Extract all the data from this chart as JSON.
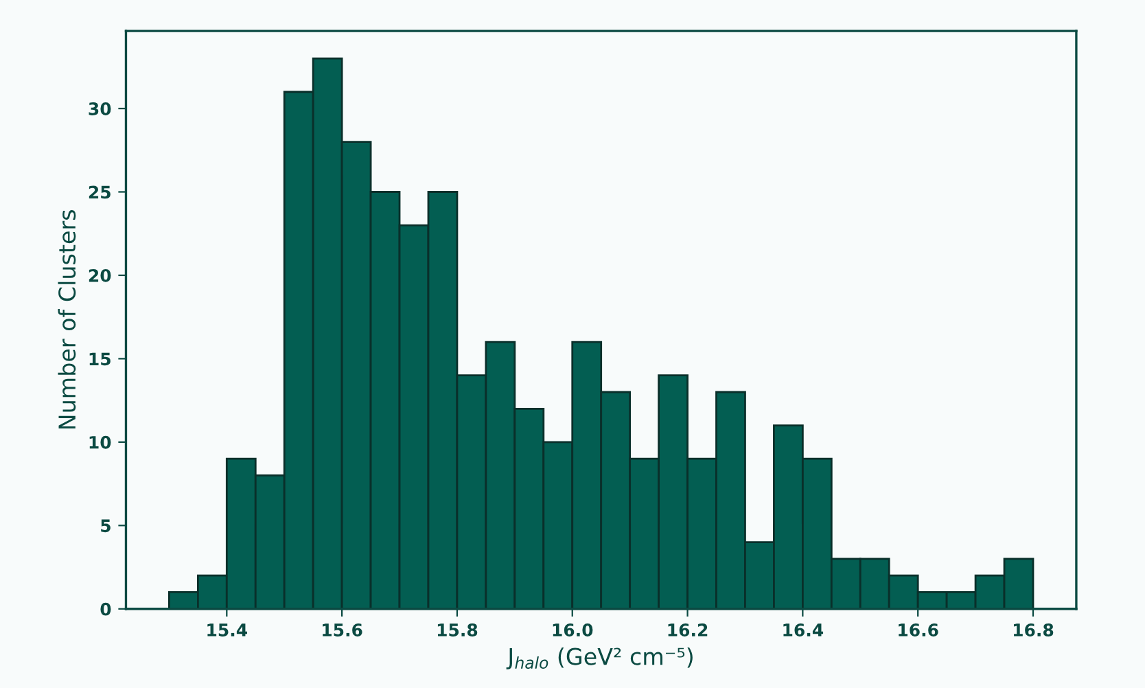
{
  "chart_data": {
    "type": "histogram",
    "xlabel": "J$_{halo}$ (GeV² cm⁻⁵)",
    "ylabel": "Number of Clusters",
    "bins": [
      15.3,
      15.35,
      15.4,
      15.45,
      15.5,
      15.55,
      15.6,
      15.65,
      15.7,
      15.75,
      15.8,
      15.85,
      15.9,
      15.95,
      16.0,
      16.05,
      16.1,
      16.15,
      16.2,
      16.25,
      16.3,
      16.35,
      16.4,
      16.45,
      16.5,
      16.55,
      16.6,
      16.65,
      16.7,
      16.75,
      16.8
    ],
    "values": [
      1,
      2,
      9,
      8,
      31,
      33,
      28,
      25,
      23,
      25,
      14,
      16,
      12,
      10,
      16,
      13,
      9,
      14,
      9,
      13,
      4,
      11,
      9,
      3,
      3,
      2,
      1,
      1,
      2,
      3
    ],
    "color": "#035e52",
    "xlim": [
      15.225,
      16.875
    ],
    "ylim": [
      0,
      34.65
    ],
    "xticks": [
      {
        "value": 15.4,
        "label": "15.4"
      },
      {
        "value": 15.6,
        "label": "15.6"
      },
      {
        "value": 15.8,
        "label": "15.8"
      },
      {
        "value": 16.0,
        "label": "16.0"
      },
      {
        "value": 16.2,
        "label": "16.2"
      },
      {
        "value": 16.4,
        "label": "16.4"
      },
      {
        "value": 16.6,
        "label": "16.6"
      },
      {
        "value": 16.8,
        "label": "16.8"
      }
    ],
    "yticks": [
      0,
      5,
      10,
      15,
      20,
      25,
      30
    ],
    "grid": false
  }
}
